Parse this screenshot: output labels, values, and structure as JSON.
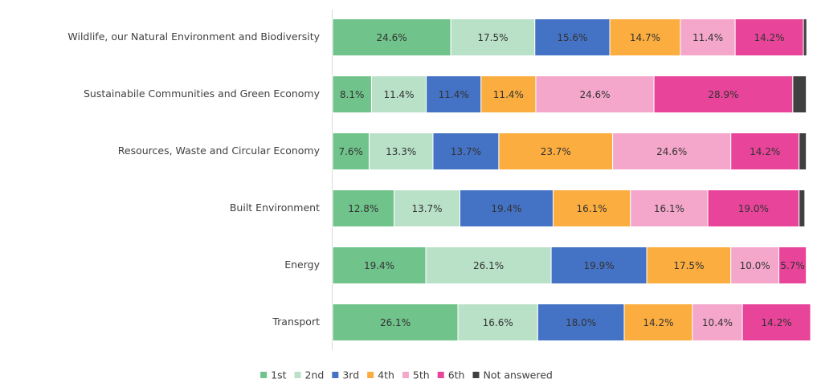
{
  "chart_data": {
    "type": "stacked_barh",
    "categories": [
      "Wildlife, our Natural Environment and Biodiversity",
      "Sustainabile Communities and Green Economy",
      "Resources, Waste and Circular Economy",
      "Built Environment",
      "Energy",
      "Transport"
    ],
    "xlim": [
      0,
      100
    ],
    "legend": "bottom",
    "series": [
      {
        "name": "1st",
        "color": "#70c38b",
        "values": [
          24.6,
          8.1,
          7.6,
          12.8,
          19.4,
          26.1
        ],
        "value_labels": [
          "24.6%",
          "8.1%",
          "7.6%",
          "12.8%",
          "19.4%",
          "26.1%"
        ]
      },
      {
        "name": "2nd",
        "color": "#b9e1c8",
        "values": [
          17.5,
          11.4,
          13.3,
          13.7,
          26.1,
          16.6
        ],
        "value_labels": [
          "17.5%",
          "11.4%",
          "13.3%",
          "13.7%",
          "26.1%",
          "16.6%"
        ]
      },
      {
        "name": "3rd",
        "color": "#4472c4",
        "values": [
          15.6,
          11.4,
          13.7,
          19.4,
          19.9,
          18.0
        ],
        "value_labels": [
          "15.6%",
          "11.4%",
          "13.7%",
          "19.4%",
          "19.9%",
          "18.0%"
        ]
      },
      {
        "name": "4th",
        "color": "#fbad3f",
        "values": [
          14.7,
          11.4,
          23.7,
          16.1,
          17.5,
          14.2
        ],
        "value_labels": [
          "14.7%",
          "11.4%",
          "23.7%",
          "16.1%",
          "17.5%",
          "14.2%"
        ]
      },
      {
        "name": "5th",
        "color": "#f4a7cb",
        "values": [
          11.4,
          24.6,
          24.6,
          16.1,
          10.0,
          10.4
        ],
        "value_labels": [
          "11.4%",
          "24.6%",
          "24.6%",
          "16.1%",
          "10.0%",
          "10.4%"
        ]
      },
      {
        "name": "6th",
        "color": "#e8449a",
        "values": [
          14.2,
          28.9,
          14.2,
          19.0,
          5.7,
          14.2
        ],
        "value_labels": [
          "14.2%",
          "28.9%",
          "14.2%",
          "19.0%",
          "5.7%",
          "14.2%"
        ]
      },
      {
        "name": "Not answered",
        "color": "#404040",
        "values": [
          0.7,
          2.8,
          1.5,
          1.2,
          0,
          0
        ]
      }
    ]
  }
}
